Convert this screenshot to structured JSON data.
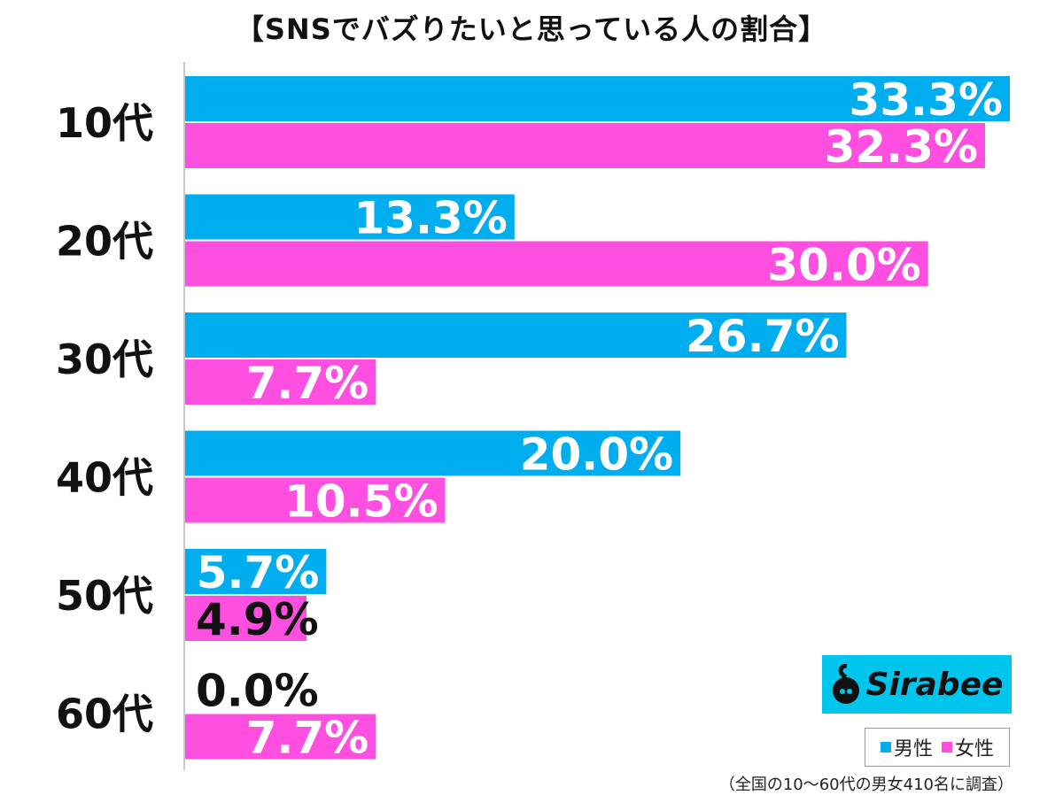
{
  "title": "【SNSでバズりたいと思っている人の割合】",
  "chart_data": {
    "type": "bar",
    "orientation": "horizontal",
    "categories": [
      "10代",
      "20代",
      "30代",
      "40代",
      "50代",
      "60代"
    ],
    "series": [
      {
        "name": "男性",
        "color": "#00aeef",
        "values": [
          33.3,
          13.3,
          26.7,
          20.0,
          5.7,
          0.0
        ],
        "labels": [
          "33.3%",
          "13.3%",
          "26.7%",
          "20.0%",
          "5.7%",
          "0.0%"
        ]
      },
      {
        "name": "女性",
        "color": "#ff4fe0",
        "values": [
          32.3,
          30.0,
          7.7,
          10.5,
          4.9,
          7.7
        ],
        "labels": [
          "32.3%",
          "30.0%",
          "7.7%",
          "10.5%",
          "4.9%",
          "7.7%"
        ]
      }
    ],
    "xlim": [
      0,
      33.3
    ],
    "legend_position": "bottom-right",
    "grid": false
  },
  "logo": {
    "text": "Sirabee"
  },
  "note": "（全国の10〜60代の男女410名に調査）"
}
